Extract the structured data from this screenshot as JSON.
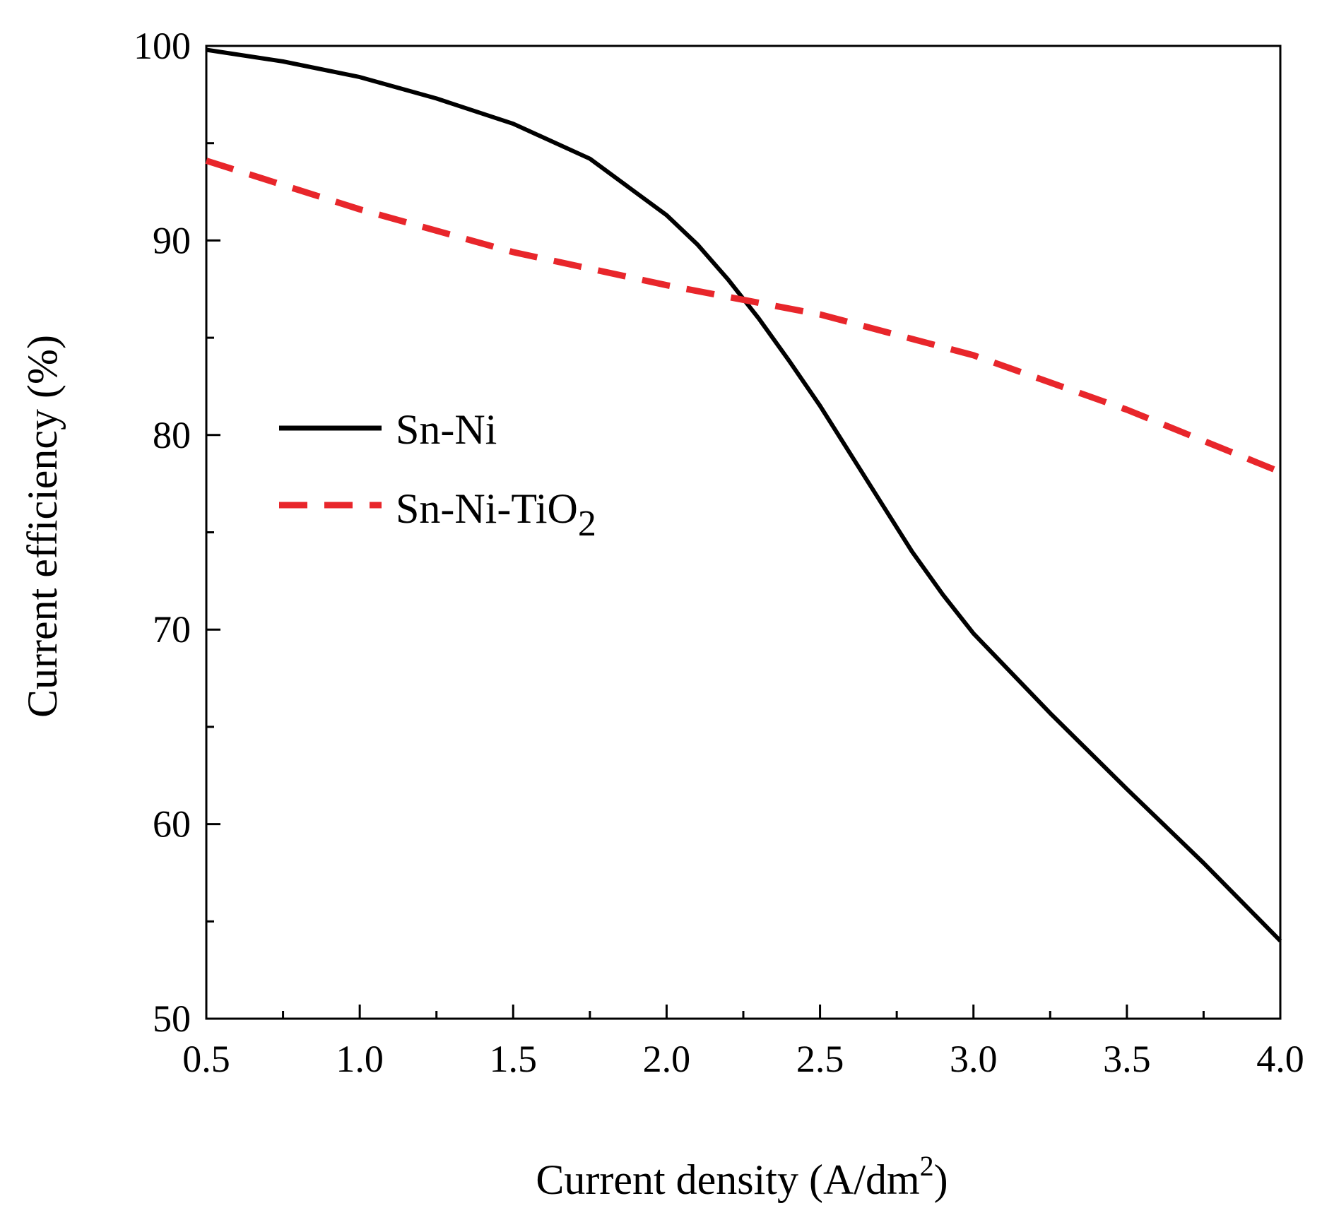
{
  "chart_data": {
    "type": "line",
    "xlabel": "Current density (A/dm",
    "xlabel_sup": "2",
    "xlabel_end": ")",
    "ylabel": "Current efficiency (%)",
    "xlim": [
      0.5,
      4.0
    ],
    "ylim": [
      50,
      100
    ],
    "x_ticks": [
      0.5,
      1.0,
      1.5,
      2.0,
      2.5,
      3.0,
      3.5,
      4.0
    ],
    "x_tick_labels": [
      "0.5",
      "1.0",
      "1.5",
      "2.0",
      "2.5",
      "3.0",
      "3.5",
      "4.0"
    ],
    "x_minor_ticks": [
      0.75,
      1.25,
      1.75,
      2.25,
      2.75,
      3.25,
      3.75
    ],
    "y_ticks": [
      50,
      60,
      70,
      80,
      90,
      100
    ],
    "y_tick_labels": [
      "50",
      "60",
      "70",
      "80",
      "90",
      "100"
    ],
    "y_minor_ticks": [
      55,
      65,
      75,
      85,
      95
    ],
    "grid": false,
    "legend_position": "middle-left",
    "series": [
      {
        "name": "Sn-Ni",
        "style": "solid",
        "color": "#000000",
        "x": [
          0.5,
          0.75,
          1.0,
          1.25,
          1.5,
          1.75,
          2.0,
          2.1,
          2.2,
          2.3,
          2.4,
          2.5,
          2.6,
          2.7,
          2.8,
          2.9,
          3.0,
          3.25,
          3.5,
          3.75,
          4.0
        ],
        "y": [
          99.8,
          99.2,
          98.4,
          97.3,
          96.0,
          94.2,
          91.3,
          89.8,
          88.0,
          86.0,
          83.8,
          81.5,
          79.0,
          76.5,
          74.0,
          71.8,
          69.8,
          65.7,
          61.8,
          58.0,
          54.0
        ]
      },
      {
        "name": "Sn-Ni-TiO",
        "name_sub": "2",
        "style": "dashed",
        "color": "#e8262b",
        "x": [
          0.5,
          1.0,
          1.5,
          2.0,
          2.5,
          3.0,
          3.5,
          4.0
        ],
        "y": [
          94.1,
          91.6,
          89.4,
          87.7,
          86.2,
          84.1,
          81.3,
          78.1
        ]
      }
    ]
  }
}
